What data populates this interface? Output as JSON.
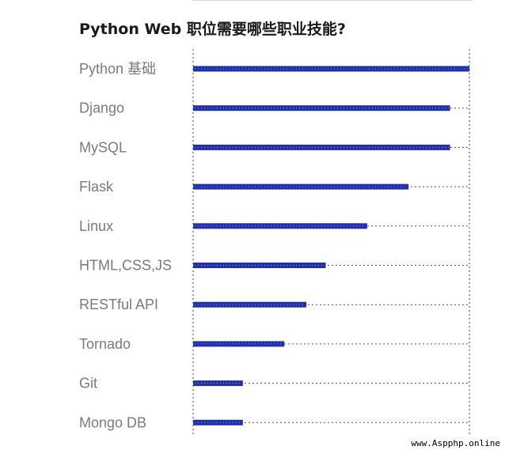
{
  "chart_data": {
    "type": "bar",
    "orientation": "horizontal",
    "title": "Python Web 职位需要哪些职业技能?",
    "categories": [
      "Python 基础",
      "Django",
      "MySQL",
      "Flask",
      "Linux",
      "HTML,CSS,JS",
      "RESTful API",
      "Tornado",
      "Git",
      "Mongo DB"
    ],
    "values": [
      100,
      93,
      93,
      78,
      63,
      48,
      41,
      33,
      18,
      18
    ],
    "xlim": [
      0,
      100
    ],
    "grid": true,
    "bar_color": "#1f2fb0"
  },
  "watermark": "www.Aspphp.online"
}
